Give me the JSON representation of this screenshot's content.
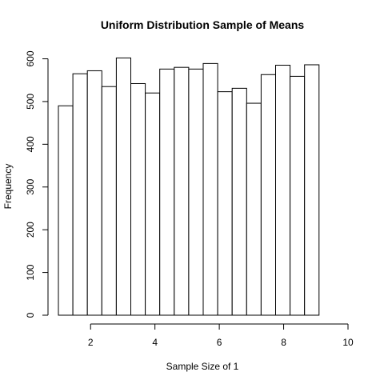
{
  "chart_data": {
    "type": "bar",
    "title": "Uniform Distribution Sample of Means",
    "xlabel": "Sample Size of 1",
    "ylabel": "Frequency",
    "bin_width": 0.45,
    "bin_start": 1.0,
    "values": [
      490,
      565,
      572,
      535,
      602,
      542,
      520,
      576,
      580,
      576,
      589,
      523,
      531,
      496,
      563,
      585,
      559,
      586
    ],
    "xlim": [
      1.0,
      10.0
    ],
    "ylim": [
      0,
      620
    ],
    "x_ticks": [
      2,
      4,
      6,
      8,
      10
    ],
    "y_ticks": [
      0,
      100,
      200,
      300,
      400,
      500,
      600
    ]
  }
}
